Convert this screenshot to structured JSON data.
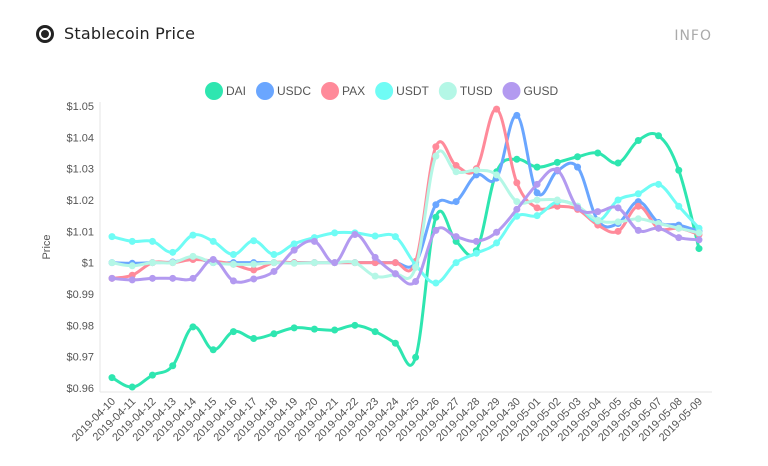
{
  "header": {
    "title": "Stablecoin Price",
    "info_label": "INFO",
    "logo_icon": "circle-logo-icon"
  },
  "chart_data": {
    "type": "line",
    "title": "",
    "xlabel": "",
    "ylabel": "Price",
    "ylim": [
      0.96,
      1.05
    ],
    "yticks": [
      "$0.96",
      "$0.97",
      "$0.98",
      "$0.99",
      "$1",
      "$1.01",
      "$1.02",
      "$1.03",
      "$1.04",
      "$1.05"
    ],
    "ytick_values": [
      0.96,
      0.97,
      0.98,
      0.99,
      1.0,
      1.01,
      1.02,
      1.03,
      1.04,
      1.05
    ],
    "legend_position": "top",
    "grid": false,
    "x": [
      "2019-04-10",
      "2019-04-11",
      "2019-04-12",
      "2019-04-13",
      "2019-04-14",
      "2019-04-15",
      "2019-04-16",
      "2019-04-17",
      "2019-04-18",
      "2019-04-19",
      "2019-04-20",
      "2019-04-21",
      "2019-04-22",
      "2019-04-23",
      "2019-04-24",
      "2019-04-25",
      "2019-04-26",
      "2019-04-27",
      "2019-04-28",
      "2019-04-29",
      "2019-04-30",
      "2019-05-01",
      "2019-05-02",
      "2019-05-03",
      "2019-05-04",
      "2019-05-05",
      "2019-05-06",
      "2019-05-07",
      "2019-05-08",
      "2019-05-09"
    ],
    "series": [
      {
        "name": "DAI",
        "color": "#2ee6b0",
        "values": [
          0.9633,
          0.9603,
          0.9641,
          0.9671,
          0.9795,
          0.9722,
          0.978,
          0.9758,
          0.9773,
          0.9792,
          0.9788,
          0.9785,
          0.98,
          0.978,
          0.9743,
          0.9698,
          1.0145,
          1.0068,
          1.0038,
          1.029,
          1.033,
          1.0305,
          1.032,
          1.0338,
          1.035,
          1.0318,
          1.039,
          1.0405,
          1.0295,
          1.0045
        ]
      },
      {
        "name": "USDC",
        "color": "#6aa6ff",
        "values": [
          1.0,
          0.9998,
          1.0,
          1.0002,
          1.0015,
          1.0,
          1.0,
          1.0,
          1.0,
          1.0,
          1.0,
          1.0,
          1.0,
          1.0,
          1.0,
          1.0,
          1.0185,
          1.0195,
          1.028,
          1.027,
          1.047,
          1.0223,
          1.0293,
          1.0305,
          1.0135,
          1.0125,
          1.0195,
          1.0128,
          1.012,
          1.01
        ]
      },
      {
        "name": "PAX",
        "color": "#ff8a9a",
        "values": [
          0.995,
          0.996,
          1.0,
          1.0,
          1.001,
          1.0005,
          0.9995,
          0.9977,
          1.0,
          1.0,
          1.0,
          1.0,
          1.0,
          1.0,
          1.0,
          1.0004,
          1.037,
          1.031,
          1.03,
          1.049,
          1.0255,
          1.0175,
          1.018,
          1.017,
          1.012,
          1.01,
          1.018,
          1.011,
          1.011,
          1.009
        ]
      },
      {
        "name": "USDT",
        "color": "#6ffcf5",
        "values": [
          1.0083,
          1.0068,
          1.0068,
          1.0033,
          1.0088,
          1.0068,
          1.0026,
          1.007,
          1.0026,
          1.006,
          1.008,
          1.0095,
          1.0095,
          1.0085,
          1.0083,
          0.9993,
          0.9935,
          1.0,
          1.003,
          1.0063,
          1.0148,
          1.015,
          1.0195,
          1.018,
          1.0133,
          1.02,
          1.022,
          1.025,
          1.018,
          1.011
        ]
      },
      {
        "name": "TUSD",
        "color": "#b4f7e6",
        "values": [
          1.0,
          0.999,
          1.0,
          1.0,
          1.002,
          1.0,
          0.9995,
          0.9995,
          1.0,
          0.9998,
          1.0,
          1.0,
          1.0,
          0.9957,
          0.9963,
          0.9985,
          1.034,
          1.029,
          1.0295,
          1.028,
          1.0195,
          1.02,
          1.02,
          1.018,
          1.0135,
          1.013,
          1.014,
          1.0125,
          1.011,
          1.0095
        ]
      },
      {
        "name": "GUSD",
        "color": "#b39af0",
        "values": [
          0.995,
          0.9945,
          0.995,
          0.995,
          0.995,
          1.001,
          0.9942,
          0.9948,
          0.9972,
          1.004,
          1.0068,
          1.0,
          1.009,
          1.0017,
          0.9965,
          0.994,
          1.0103,
          1.0083,
          1.0068,
          1.0097,
          1.017,
          1.025,
          1.0295,
          1.0175,
          1.0163,
          1.0175,
          1.0103,
          1.011,
          1.008,
          1.0073
        ]
      }
    ]
  }
}
